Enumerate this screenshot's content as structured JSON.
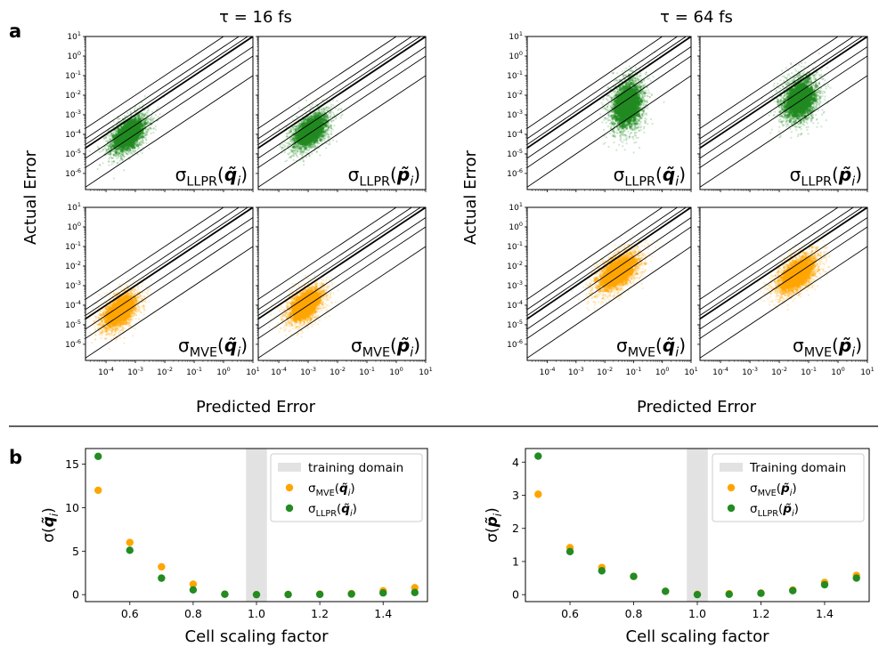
{
  "panel_a": {
    "label": "a",
    "columns": [
      {
        "title": "τ =  16 fs"
      },
      {
        "title": "τ =  64 fs"
      }
    ],
    "ylabel": "Actual Error",
    "xlabel": "Predicted Error",
    "log_ticks": [
      "10^-4",
      "10^-3",
      "10^-2",
      "10^-1",
      "10^0",
      "10^1"
    ],
    "log_ticks_y": [
      "10^-6",
      "10^-5",
      "10^-4",
      "10^-3",
      "10^-2",
      "10^-1",
      "10^0",
      "10^1"
    ]
  },
  "panel_b": {
    "label": "b"
  },
  "colors": {
    "llpr": "#228b22",
    "mve": "#ffa500",
    "training_domain": "#e2e2e2"
  },
  "chart_data": [
    {
      "type": "scatter",
      "name": "tau16-llpr-q",
      "title": "τ = 16 fs",
      "annotation": {
        "base": "σ",
        "sub": "LLPR",
        "arg": "q̃",
        "argsub": "i"
      },
      "xscale": "log",
      "yscale": "log",
      "xlim": [
        2e-05,
        10
      ],
      "ylim": [
        1.5e-07,
        10
      ],
      "xticks": [
        0.0001,
        0.001,
        0.01,
        0.1,
        1,
        10
      ],
      "yticks": [
        1e-06,
        1e-05,
        0.0001,
        0.001,
        0.01,
        0.1,
        1,
        10
      ],
      "color": "llpr",
      "cloud": {
        "x_center": 0.0006,
        "x_spread_decades": 0.6,
        "y_center": 0.0001,
        "y_spread_decades": 0.8,
        "slope": 1.0,
        "n": 2500
      },
      "reference_lines": [
        {
          "ratio": 0.01
        },
        {
          "ratio": 0.1
        },
        {
          "ratio": 0.3
        },
        {
          "ratio": 1
        },
        {
          "ratio": 1.5
        },
        {
          "ratio": 3
        },
        {
          "ratio": 10
        }
      ]
    },
    {
      "type": "scatter",
      "name": "tau16-llpr-p",
      "title": "τ = 16 fs",
      "annotation": {
        "base": "σ",
        "sub": "LLPR",
        "arg": "p̃",
        "argsub": "i"
      },
      "xscale": "log",
      "yscale": "log",
      "xlim": [
        2e-05,
        10
      ],
      "ylim": [
        1.5e-07,
        10
      ],
      "xticks": [
        0.0001,
        0.001,
        0.01,
        0.1,
        1,
        10
      ],
      "yticks": [
        1e-06,
        1e-05,
        0.0001,
        0.001,
        0.01,
        0.1,
        1,
        10
      ],
      "color": "llpr",
      "cloud": {
        "x_center": 0.0012,
        "x_spread_decades": 0.6,
        "y_center": 0.00015,
        "y_spread_decades": 0.8,
        "slope": 1.0,
        "n": 2500
      },
      "reference_lines": [
        {
          "ratio": 0.01
        },
        {
          "ratio": 0.1
        },
        {
          "ratio": 0.3
        },
        {
          "ratio": 1
        },
        {
          "ratio": 1.5
        },
        {
          "ratio": 3
        },
        {
          "ratio": 10
        }
      ]
    },
    {
      "type": "scatter",
      "name": "tau16-mve-q",
      "title": "τ = 16 fs",
      "annotation": {
        "base": "σ",
        "sub": "MVE",
        "arg": "q̃",
        "argsub": "i"
      },
      "xscale": "log",
      "yscale": "log",
      "xlim": [
        2e-05,
        10
      ],
      "ylim": [
        1.5e-07,
        10
      ],
      "xticks": [
        0.0001,
        0.001,
        0.01,
        0.1,
        1,
        10
      ],
      "yticks": [
        1e-06,
        1e-05,
        0.0001,
        0.001,
        0.01,
        0.1,
        1,
        10
      ],
      "color": "mve",
      "cloud": {
        "x_center": 0.0003,
        "x_spread_decades": 0.6,
        "y_center": 5e-05,
        "y_spread_decades": 0.8,
        "slope": 1.0,
        "n": 2500
      },
      "reference_lines": [
        {
          "ratio": 0.01
        },
        {
          "ratio": 0.1
        },
        {
          "ratio": 0.3
        },
        {
          "ratio": 1
        },
        {
          "ratio": 1.5
        },
        {
          "ratio": 3
        },
        {
          "ratio": 10
        }
      ]
    },
    {
      "type": "scatter",
      "name": "tau16-mve-p",
      "title": "τ = 16 fs",
      "annotation": {
        "base": "σ",
        "sub": "MVE",
        "arg": "p̃",
        "argsub": "i"
      },
      "xscale": "log",
      "yscale": "log",
      "xlim": [
        2e-05,
        10
      ],
      "ylim": [
        1.5e-07,
        10
      ],
      "xticks": [
        0.0001,
        0.001,
        0.01,
        0.1,
        1,
        10
      ],
      "yticks": [
        1e-06,
        1e-05,
        0.0001,
        0.001,
        0.01,
        0.1,
        1,
        10
      ],
      "color": "mve",
      "cloud": {
        "x_center": 0.0008,
        "x_spread_decades": 0.6,
        "y_center": 0.0001,
        "y_spread_decades": 0.8,
        "slope": 1.0,
        "n": 2500
      },
      "reference_lines": [
        {
          "ratio": 0.01
        },
        {
          "ratio": 0.1
        },
        {
          "ratio": 0.3
        },
        {
          "ratio": 1
        },
        {
          "ratio": 1.5
        },
        {
          "ratio": 3
        },
        {
          "ratio": 10
        }
      ]
    },
    {
      "type": "scatter",
      "name": "tau64-llpr-q",
      "title": "τ = 64 fs",
      "annotation": {
        "base": "σ",
        "sub": "LLPR",
        "arg": "q̃",
        "argsub": "i"
      },
      "xscale": "log",
      "yscale": "log",
      "xlim": [
        2e-05,
        10
      ],
      "ylim": [
        1.5e-07,
        10
      ],
      "xticks": [
        0.0001,
        0.001,
        0.01,
        0.1,
        1,
        10
      ],
      "yticks": [
        1e-06,
        1e-05,
        0.0001,
        0.001,
        0.01,
        0.1,
        1,
        10
      ],
      "color": "llpr",
      "cloud": {
        "x_center": 0.06,
        "x_spread_decades": 0.55,
        "y_center": 0.003,
        "y_spread_decades": 1.3,
        "slope": 0.6,
        "n": 2500
      },
      "reference_lines": [
        {
          "ratio": 0.01
        },
        {
          "ratio": 0.1
        },
        {
          "ratio": 0.3
        },
        {
          "ratio": 1
        },
        {
          "ratio": 1.5
        },
        {
          "ratio": 3
        },
        {
          "ratio": 10
        }
      ]
    },
    {
      "type": "scatter",
      "name": "tau64-llpr-p",
      "title": "τ = 64 fs",
      "annotation": {
        "base": "σ",
        "sub": "LLPR",
        "arg": "p̃",
        "argsub": "i"
      },
      "xscale": "log",
      "yscale": "log",
      "xlim": [
        2e-05,
        10
      ],
      "ylim": [
        1.5e-07,
        10
      ],
      "xticks": [
        0.0001,
        0.001,
        0.01,
        0.1,
        1,
        10
      ],
      "yticks": [
        1e-06,
        1e-05,
        0.0001,
        0.001,
        0.01,
        0.1,
        1,
        10
      ],
      "color": "llpr",
      "cloud": {
        "x_center": 0.05,
        "x_spread_decades": 0.6,
        "y_center": 0.006,
        "y_spread_decades": 1.1,
        "slope": 0.6,
        "n": 2500
      },
      "reference_lines": [
        {
          "ratio": 0.01
        },
        {
          "ratio": 0.1
        },
        {
          "ratio": 0.3
        },
        {
          "ratio": 1
        },
        {
          "ratio": 1.5
        },
        {
          "ratio": 3
        },
        {
          "ratio": 10
        }
      ]
    },
    {
      "type": "scatter",
      "name": "tau64-mve-q",
      "title": "τ = 64 fs",
      "annotation": {
        "base": "σ",
        "sub": "MVE",
        "arg": "q̃",
        "argsub": "i"
      },
      "xscale": "log",
      "yscale": "log",
      "xlim": [
        2e-05,
        10
      ],
      "ylim": [
        1.5e-07,
        10
      ],
      "xticks": [
        0.0001,
        0.001,
        0.01,
        0.1,
        1,
        10
      ],
      "yticks": [
        1e-06,
        1e-05,
        0.0001,
        0.001,
        0.01,
        0.1,
        1,
        10
      ],
      "color": "mve",
      "cloud": {
        "x_center": 0.03,
        "x_spread_decades": 0.75,
        "y_center": 0.005,
        "y_spread_decades": 0.85,
        "slope": 1.0,
        "n": 2500
      },
      "reference_lines": [
        {
          "ratio": 0.01
        },
        {
          "ratio": 0.1
        },
        {
          "ratio": 0.3
        },
        {
          "ratio": 1
        },
        {
          "ratio": 1.5
        },
        {
          "ratio": 3
        },
        {
          "ratio": 10
        }
      ]
    },
    {
      "type": "scatter",
      "name": "tau64-mve-p",
      "title": "τ = 64 fs",
      "annotation": {
        "base": "σ",
        "sub": "MVE",
        "arg": "p̃",
        "argsub": "i"
      },
      "xscale": "log",
      "yscale": "log",
      "xlim": [
        2e-05,
        10
      ],
      "ylim": [
        1.5e-07,
        10
      ],
      "xticks": [
        0.0001,
        0.001,
        0.01,
        0.1,
        1,
        10
      ],
      "yticks": [
        1e-06,
        1e-05,
        0.0001,
        0.001,
        0.01,
        0.1,
        1,
        10
      ],
      "color": "mve",
      "cloud": {
        "x_center": 0.04,
        "x_spread_decades": 0.7,
        "y_center": 0.004,
        "y_spread_decades": 0.85,
        "slope": 1.0,
        "n": 2500
      },
      "reference_lines": [
        {
          "ratio": 0.01
        },
        {
          "ratio": 0.1
        },
        {
          "ratio": 0.3
        },
        {
          "ratio": 1
        },
        {
          "ratio": 1.5
        },
        {
          "ratio": 3
        },
        {
          "ratio": 10
        }
      ]
    },
    {
      "type": "scatter",
      "name": "scaling-q",
      "xlabel": "Cell scaling factor",
      "ylabel": {
        "base": "σ(",
        "arg": "q̃",
        "argsub": "i",
        "close": ")"
      },
      "xlim": [
        0.46,
        1.54
      ],
      "ylim": [
        -0.8,
        16.8
      ],
      "xticks": [
        0.6,
        0.8,
        1.0,
        1.2,
        1.4
      ],
      "xtick_labels": [
        "0.6",
        "0.8",
        "1.0",
        "1.2",
        "1.4"
      ],
      "yticks": [
        0,
        5,
        10,
        15
      ],
      "ytick_labels": [
        "0",
        "5",
        "10",
        "15"
      ],
      "training_domain": [
        0.967,
        1.033
      ],
      "legend": {
        "location": "top-right",
        "entries": [
          {
            "label": "training domain",
            "kind": "band"
          },
          {
            "label": {
              "base": "σ",
              "sub": "MVE",
              "arg": "q̃",
              "argsub": "i"
            },
            "kind": "marker",
            "color": "mve"
          },
          {
            "label": {
              "base": "σ",
              "sub": "LLPR",
              "arg": "q̃",
              "argsub": "i"
            },
            "kind": "marker",
            "color": "llpr"
          }
        ]
      },
      "x": [
        0.5,
        0.6,
        0.7,
        0.8,
        0.9,
        1.0,
        1.1,
        1.2,
        1.3,
        1.4,
        1.5
      ],
      "series": [
        {
          "name": "σ_MVE(q̃_i)",
          "color": "mve",
          "values": [
            12.0,
            6.0,
            3.2,
            1.2,
            0.05,
            0.0,
            0.02,
            0.06,
            0.12,
            0.45,
            0.8
          ]
        },
        {
          "name": "σ_LLPR(q̃_i)",
          "color": "llpr",
          "values": [
            15.9,
            5.1,
            1.9,
            0.55,
            0.05,
            0.0,
            0.01,
            0.03,
            0.07,
            0.2,
            0.25
          ]
        }
      ]
    },
    {
      "type": "scatter",
      "name": "scaling-p",
      "xlabel": "Cell scaling factor",
      "ylabel": {
        "base": "σ(",
        "arg": "p̃",
        "argsub": "i",
        "close": ")"
      },
      "xlim": [
        0.46,
        1.54
      ],
      "ylim": [
        -0.21,
        4.41
      ],
      "xticks": [
        0.6,
        0.8,
        1.0,
        1.2,
        1.4
      ],
      "xtick_labels": [
        "0.6",
        "0.8",
        "1.0",
        "1.2",
        "1.4"
      ],
      "yticks": [
        0,
        1,
        2,
        3,
        4
      ],
      "ytick_labels": [
        "0",
        "1",
        "2",
        "3",
        "4"
      ],
      "training_domain": [
        0.967,
        1.033
      ],
      "legend": {
        "location": "top-right",
        "entries": [
          {
            "label": "Training domain",
            "kind": "band"
          },
          {
            "label": {
              "base": "σ",
              "sub": "MVE",
              "arg": "p̃",
              "argsub": "i"
            },
            "kind": "marker",
            "color": "mve"
          },
          {
            "label": {
              "base": "σ",
              "sub": "LLPR",
              "arg": "p̃",
              "argsub": "i"
            },
            "kind": "marker",
            "color": "llpr"
          }
        ]
      },
      "x": [
        0.5,
        0.6,
        0.7,
        0.8,
        0.9,
        1.0,
        1.1,
        1.2,
        1.3,
        1.4,
        1.5
      ],
      "series": [
        {
          "name": "σ_MVE(p̃_i)",
          "color": "mve",
          "values": [
            3.03,
            1.42,
            0.82,
            0.55,
            0.1,
            0.01,
            0.03,
            0.05,
            0.14,
            0.37,
            0.58
          ]
        },
        {
          "name": "σ_LLPR(p̃_i)",
          "color": "llpr",
          "values": [
            4.18,
            1.3,
            0.72,
            0.55,
            0.1,
            0.0,
            0.01,
            0.04,
            0.12,
            0.3,
            0.5
          ]
        }
      ]
    }
  ]
}
